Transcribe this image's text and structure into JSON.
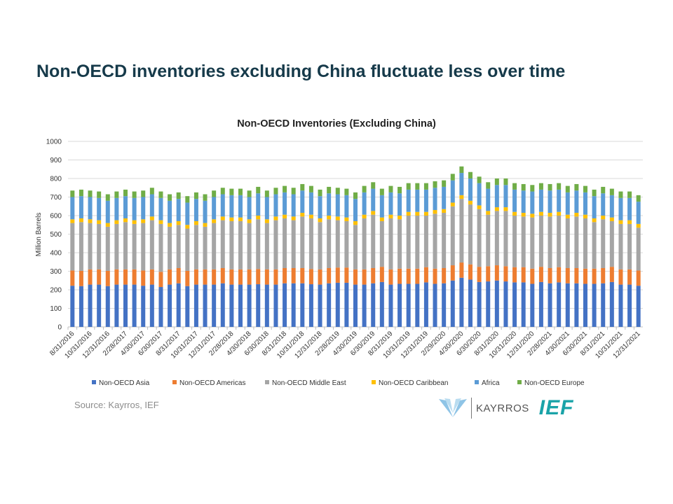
{
  "slide_title": "Non-OECD inventories excluding China fluctuate less over time",
  "source": "Source: Kayrros, IEF",
  "logos": {
    "kayrros": "KAYRROS",
    "ief": "IEF"
  },
  "chart_data": {
    "type": "bar",
    "stacked": true,
    "title": "Non-OECD Inventories (Excluding China)",
    "xlabel": "",
    "ylabel": "Million Barrels",
    "ylim": [
      0,
      1000
    ],
    "yticks": [
      0,
      100,
      200,
      300,
      400,
      500,
      600,
      700,
      800,
      900,
      1000
    ],
    "grid": true,
    "legend_position": "bottom",
    "categories": [
      "8/31/2016",
      "9/30/2016",
      "10/31/2016",
      "11/30/2016",
      "12/31/2016",
      "1/31/2017",
      "2/28/2017",
      "3/31/2017",
      "4/30/2017",
      "5/31/2017",
      "6/30/2017",
      "7/31/2017",
      "8/31/2017",
      "9/30/2017",
      "10/31/2017",
      "11/30/2017",
      "12/31/2017",
      "1/31/2018",
      "2/28/2018",
      "3/31/2018",
      "4/30/2018",
      "5/31/2018",
      "6/30/2018",
      "7/31/2018",
      "8/31/2018",
      "9/30/2018",
      "10/31/2018",
      "11/30/2018",
      "12/31/2018",
      "1/31/2019",
      "2/28/2019",
      "3/31/2019",
      "4/30/2019",
      "5/31/2019",
      "6/30/2019",
      "7/31/2019",
      "8/31/2019",
      "9/30/2019",
      "10/31/2019",
      "11/30/2019",
      "12/31/2019",
      "1/31/2020",
      "2/29/2020",
      "3/31/2020",
      "4/30/2020",
      "5/31/2020",
      "6/30/2020",
      "7/31/2020",
      "8/31/2020",
      "9/30/2020",
      "10/31/2020",
      "11/30/2020",
      "12/31/2020",
      "1/31/2021",
      "2/28/2021",
      "3/31/2021",
      "4/30/2021",
      "5/31/2021",
      "6/30/2021",
      "7/31/2021",
      "8/31/2021",
      "9/30/2021",
      "10/31/2021",
      "11/30/2021",
      "12/31/2021"
    ],
    "x_tick_labels": [
      "8/31/2016",
      "10/31/2016",
      "12/31/2016",
      "2/28/2017",
      "4/30/2017",
      "6/30/2017",
      "8/31/2017",
      "10/31/2017",
      "12/31/2017",
      "2/28/2018",
      "4/30/2018",
      "6/30/2018",
      "8/31/2018",
      "10/31/2018",
      "12/31/2018",
      "2/28/2019",
      "4/30/2019",
      "6/30/2019",
      "8/31/2019",
      "10/31/2019",
      "12/31/2019",
      "2/29/2020",
      "4/30/2020",
      "6/30/2020",
      "8/31/2020",
      "10/31/2020",
      "12/31/2020",
      "2/28/2021",
      "4/30/2021",
      "6/30/2021",
      "8/31/2021",
      "10/31/2021",
      "12/31/2021"
    ],
    "series": [
      {
        "name": "Non-OECD Asia",
        "color": "#4472c4",
        "values": [
          222,
          220,
          228,
          228,
          220,
          228,
          228,
          228,
          222,
          228,
          215,
          228,
          235,
          220,
          228,
          228,
          228,
          235,
          228,
          228,
          228,
          230,
          228,
          228,
          235,
          235,
          235,
          230,
          228,
          235,
          238,
          238,
          228,
          228,
          235,
          242,
          228,
          232,
          232,
          232,
          240,
          232,
          235,
          250,
          265,
          255,
          242,
          245,
          250,
          245,
          240,
          240,
          232,
          242,
          235,
          240,
          235,
          235,
          232,
          232,
          235,
          242,
          228,
          228,
          222
        ]
      },
      {
        "name": "Non-OECD Americas",
        "color": "#ed7d31",
        "values": [
          82,
          82,
          82,
          82,
          82,
          82,
          82,
          82,
          82,
          82,
          82,
          82,
          82,
          82,
          82,
          82,
          82,
          82,
          82,
          82,
          82,
          82,
          82,
          82,
          82,
          82,
          82,
          82,
          82,
          82,
          82,
          82,
          82,
          82,
          82,
          82,
          82,
          82,
          82,
          82,
          82,
          82,
          82,
          82,
          82,
          82,
          82,
          82,
          82,
          82,
          82,
          82,
          82,
          82,
          82,
          82,
          82,
          82,
          82,
          82,
          82,
          82,
          82,
          82,
          82
        ]
      },
      {
        "name": "Non-OECD Middle East",
        "color": "#a5a5a5",
        "values": [
          256,
          263,
          250,
          245,
          238,
          245,
          255,
          245,
          256,
          265,
          258,
          230,
          233,
          228,
          240,
          230,
          250,
          258,
          260,
          260,
          250,
          268,
          250,
          265,
          268,
          258,
          278,
          273,
          255,
          263,
          255,
          250,
          240,
          275,
          288,
          246,
          275,
          266,
          286,
          286,
          278,
          296,
          298,
          318,
          343,
          323,
          311,
          278,
          293,
          298,
          278,
          273,
          276,
          276,
          278,
          278,
          268,
          278,
          271,
          251,
          263,
          246,
          245,
          245,
          231
        ]
      },
      {
        "name": "Non-OECD Caribbean",
        "color": "#ffc000",
        "values": [
          20,
          20,
          20,
          20,
          20,
          20,
          20,
          20,
          20,
          20,
          20,
          20,
          20,
          20,
          20,
          20,
          20,
          20,
          20,
          20,
          20,
          20,
          20,
          20,
          20,
          20,
          20,
          20,
          20,
          20,
          20,
          20,
          20,
          20,
          20,
          20,
          20,
          20,
          20,
          20,
          20,
          20,
          20,
          20,
          20,
          20,
          20,
          20,
          20,
          20,
          20,
          20,
          20,
          20,
          20,
          20,
          20,
          20,
          20,
          20,
          20,
          20,
          20,
          20,
          20
        ]
      },
      {
        "name": "Africa",
        "color": "#5b9bd5",
        "values": [
          120,
          120,
          120,
          120,
          120,
          120,
          120,
          120,
          120,
          120,
          120,
          120,
          120,
          120,
          120,
          120,
          120,
          120,
          120,
          120,
          120,
          120,
          120,
          120,
          120,
          120,
          120,
          120,
          120,
          120,
          120,
          120,
          120,
          120,
          120,
          120,
          120,
          120,
          120,
          120,
          120,
          120,
          120,
          120,
          120,
          120,
          120,
          120,
          120,
          120,
          120,
          120,
          120,
          120,
          120,
          120,
          120,
          120,
          120,
          120,
          120,
          120,
          120,
          120,
          120
        ]
      },
      {
        "name": "Non-OECD Europe",
        "color": "#70ad47",
        "values": [
          35,
          35,
          35,
          35,
          35,
          35,
          35,
          35,
          35,
          35,
          35,
          35,
          35,
          35,
          35,
          35,
          35,
          35,
          35,
          35,
          35,
          35,
          35,
          35,
          35,
          35,
          35,
          35,
          35,
          35,
          35,
          35,
          35,
          35,
          35,
          35,
          35,
          35,
          35,
          35,
          35,
          35,
          35,
          35,
          35,
          35,
          35,
          35,
          35,
          35,
          35,
          35,
          35,
          35,
          35,
          35,
          35,
          35,
          35,
          35,
          35,
          35,
          35,
          35,
          35
        ]
      }
    ]
  }
}
